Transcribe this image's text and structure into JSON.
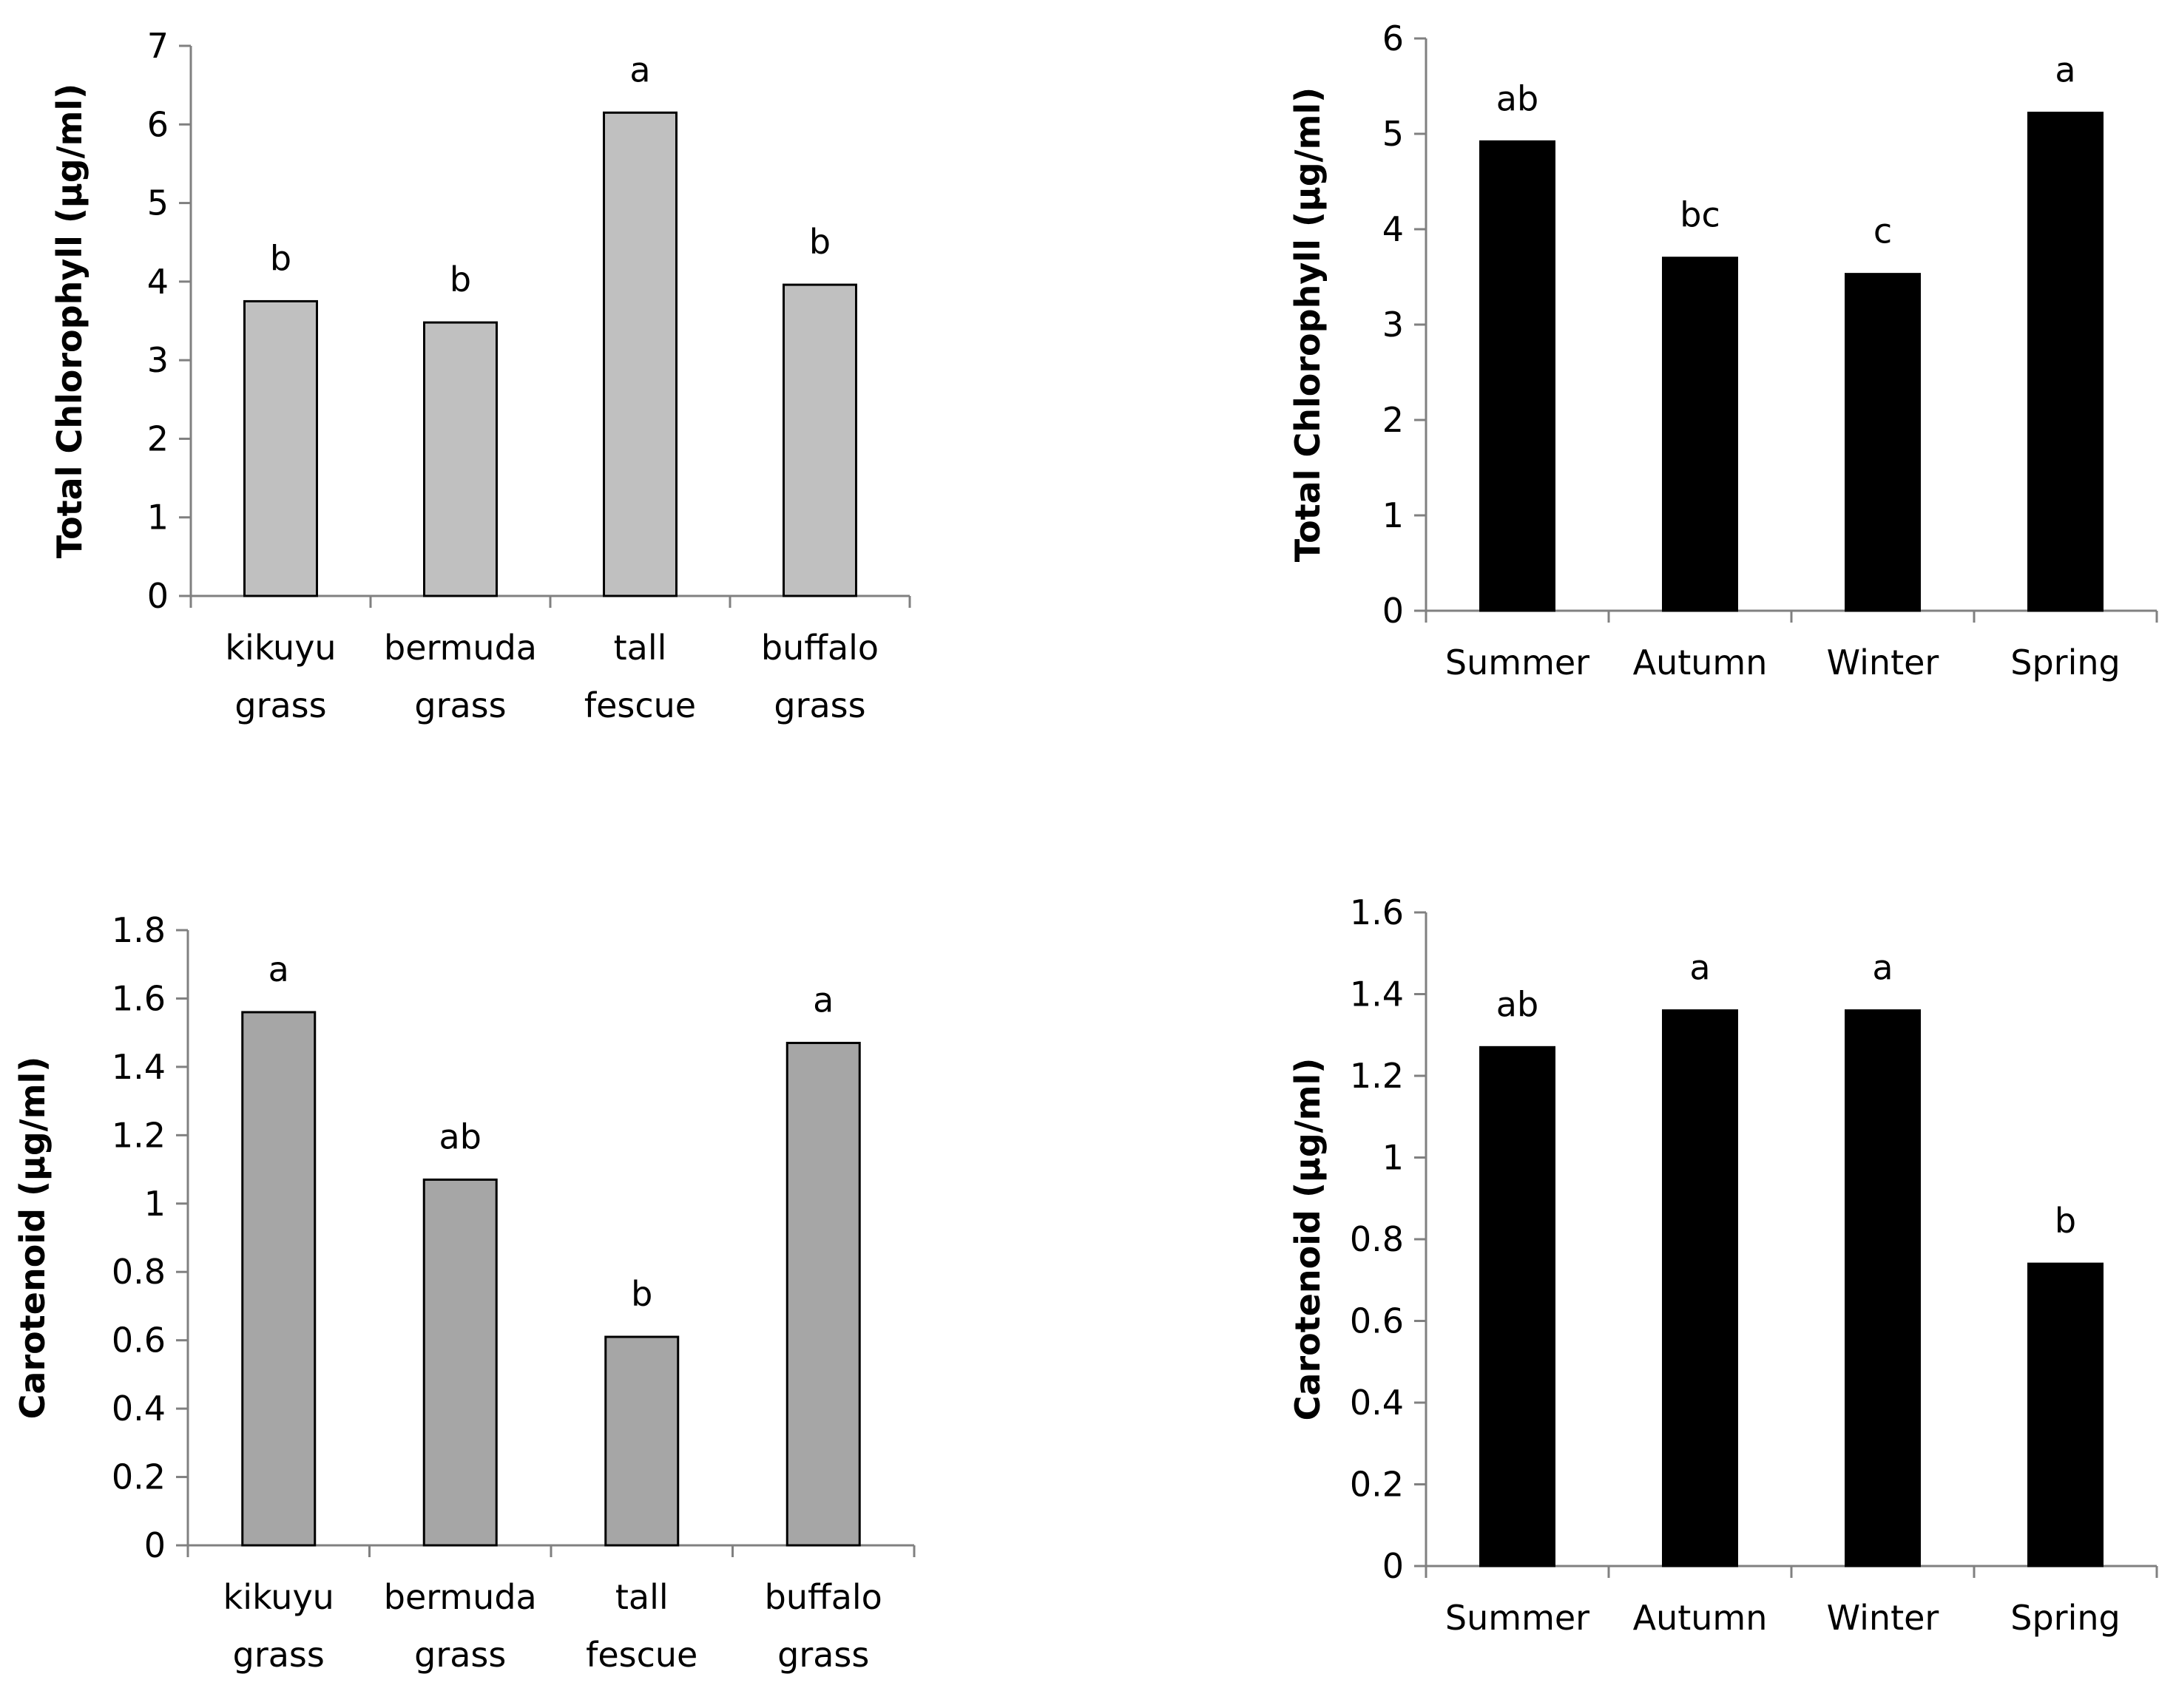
{
  "chart_data": [
    {
      "type": "bar",
      "id": "chl-grass",
      "categories": [
        [
          "kikuyu",
          "grass"
        ],
        [
          "bermuda",
          "grass"
        ],
        [
          "tall",
          "fescue"
        ],
        [
          "buffalo",
          "grass"
        ]
      ],
      "values": [
        3.75,
        3.48,
        6.15,
        3.96
      ],
      "data_labels": [
        "b",
        "b",
        "a",
        "b"
      ],
      "ylabel": "Total  Chlorophyll (µg/ml)",
      "xlabel": "",
      "ylim": [
        0,
        7
      ],
      "yticks": [
        0,
        1,
        2,
        3,
        4,
        5,
        6,
        7
      ],
      "ytick_labels": [
        "0",
        "1",
        "2",
        "3",
        "4",
        "5",
        "6",
        "7"
      ],
      "bar_color": "#c0c0c0",
      "grid": false
    },
    {
      "type": "bar",
      "id": "chl-season",
      "categories": [
        [
          "Summer"
        ],
        [
          "Autumn"
        ],
        [
          "Winter"
        ],
        [
          "Spring"
        ]
      ],
      "values": [
        4.92,
        3.7,
        3.53,
        5.22
      ],
      "data_labels": [
        "ab",
        "bc",
        "c",
        "a"
      ],
      "ylabel": "Total  Chlorophyll (µg/ml)",
      "xlabel": "",
      "ylim": [
        0,
        6
      ],
      "yticks": [
        0,
        1,
        2,
        3,
        4,
        5,
        6
      ],
      "ytick_labels": [
        "0",
        "1",
        "2",
        "3",
        "4",
        "5",
        "6"
      ],
      "bar_color": "#000000",
      "grid": false
    },
    {
      "type": "bar",
      "id": "car-grass",
      "categories": [
        [
          "kikuyu",
          "grass"
        ],
        [
          "bermuda",
          "grass"
        ],
        [
          "tall",
          "fescue"
        ],
        [
          "buffalo",
          "grass"
        ]
      ],
      "values": [
        1.56,
        1.07,
        0.61,
        1.47
      ],
      "data_labels": [
        "a",
        "ab",
        "b",
        "a"
      ],
      "ylabel": "Carotenoid (µg/ml)",
      "xlabel": "",
      "ylim": [
        0,
        1.8
      ],
      "yticks": [
        0,
        0.2,
        0.4,
        0.6,
        0.8,
        1,
        1.2,
        1.4,
        1.6,
        1.8
      ],
      "ytick_labels": [
        "0",
        "0.2",
        "0.4",
        "0.6",
        "0.8",
        "1",
        "1.2",
        "1.4",
        "1.6",
        "1.8"
      ],
      "bar_color": "#a6a6a6",
      "grid": false
    },
    {
      "type": "bar",
      "id": "car-season",
      "categories": [
        [
          "Summer"
        ],
        [
          "Autumn"
        ],
        [
          "Winter"
        ],
        [
          "Spring"
        ]
      ],
      "values": [
        1.27,
        1.36,
        1.36,
        0.74
      ],
      "data_labels": [
        "ab",
        "a",
        "a",
        "b"
      ],
      "ylabel": "Carotenoid (µg/ml)",
      "xlabel": "",
      "ylim": [
        0,
        1.6
      ],
      "yticks": [
        0,
        0.2,
        0.4,
        0.6,
        0.8,
        1,
        1.2,
        1.4,
        1.6
      ],
      "ytick_labels": [
        "0",
        "0.2",
        "0.4",
        "0.6",
        "0.8",
        "1",
        "1.2",
        "1.4",
        "1.6"
      ],
      "bar_color": "#000000",
      "grid": false
    }
  ]
}
